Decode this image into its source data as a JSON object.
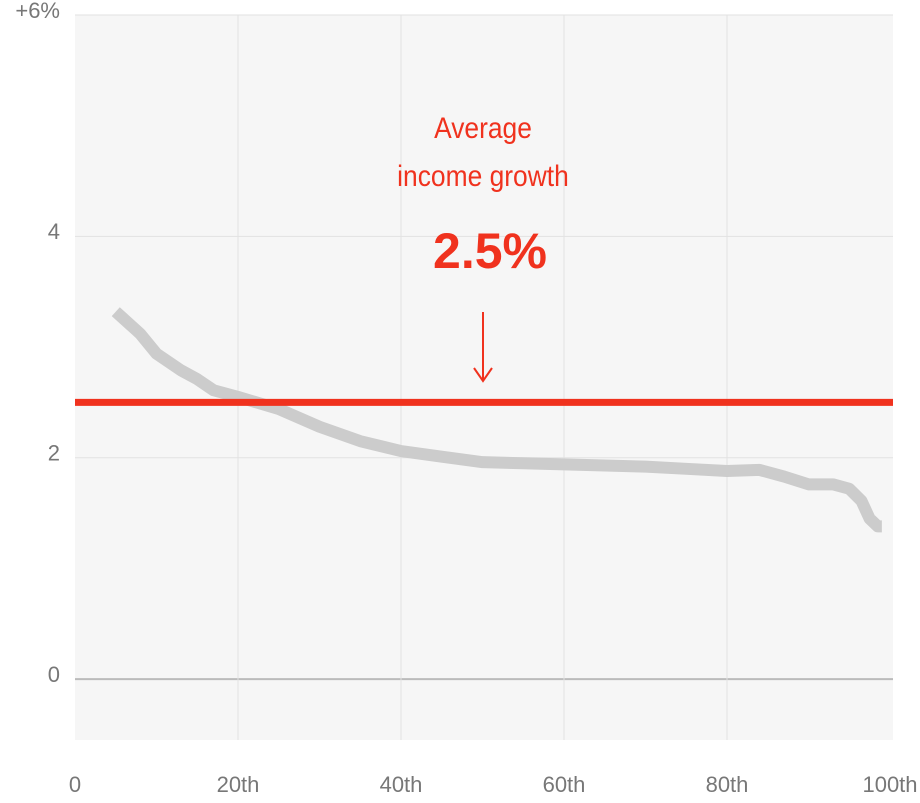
{
  "chart_data": {
    "type": "line",
    "x": [
      5,
      8,
      10,
      13,
      15,
      17,
      20,
      25,
      30,
      35,
      40,
      45,
      50,
      55,
      60,
      65,
      70,
      75,
      80,
      84,
      87,
      90,
      93,
      95,
      96.5,
      97.5,
      98.5,
      99
    ],
    "series": [
      {
        "color": "#cccccc",
        "values": [
          3.32,
          3.12,
          2.94,
          2.79,
          2.71,
          2.61,
          2.55,
          2.44,
          2.28,
          2.15,
          2.06,
          2.01,
          1.96,
          1.95,
          1.94,
          1.93,
          1.92,
          1.9,
          1.88,
          1.89,
          1.83,
          1.76,
          1.76,
          1.72,
          1.61,
          1.45,
          1.38,
          1.38
        ]
      }
    ],
    "xlim": [
      0,
      100
    ],
    "xticks": [
      0,
      {
        "value": 20,
        "label": "20th"
      },
      {
        "value": 40,
        "label": "40th"
      },
      {
        "value": 60,
        "label": "60th"
      },
      {
        "value": 80,
        "label": "80th"
      },
      {
        "value": 100,
        "label": "100th"
      }
    ],
    "ylim": [
      -0.55,
      6
    ],
    "yticks": [
      0,
      2,
      4,
      {
        "value": 6,
        "label": "+6%"
      }
    ],
    "grid": true,
    "average": {
      "value": 2.5,
      "label": "2.5%",
      "color": "#f0321e"
    },
    "annotation": [
      "Average",
      "income growth"
    ]
  }
}
